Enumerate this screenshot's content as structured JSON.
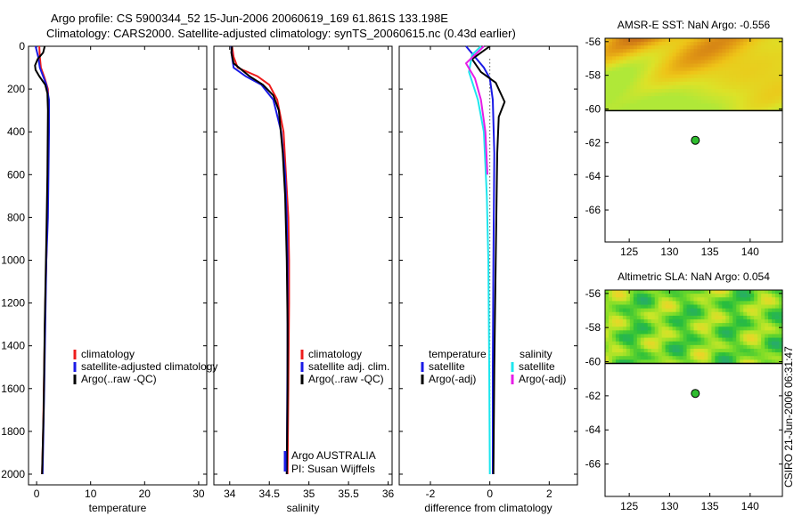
{
  "header": {
    "line1": "Argo profile: CS 5900344_52 15-Jun-2006 20060619_169 61.861S 133.198E",
    "line2": "Climatology: CARS2000. Satellite-adjusted climatology: synTS_20060615.nc (0.43d earlier)"
  },
  "side_label": "CSIRO 21-Jun-2006 06:31:47",
  "colors": {
    "climatology": "#ee1c1c",
    "satellite": "#1a1ae6",
    "argo": "#000000",
    "sal_satellite": "#1ee6ee",
    "sal_argo": "#e61ee6",
    "dot": "#2fbd2f"
  },
  "chart_data": [
    {
      "type": "line",
      "name": "temperature-profile",
      "xlabel": "temperature",
      "ylabel": "",
      "xlim": [
        -1.5,
        31.5
      ],
      "ylim": [
        2050,
        0
      ],
      "xticks": [
        0,
        10,
        20,
        30
      ],
      "yticks": [
        0,
        200,
        400,
        600,
        800,
        1000,
        1200,
        1400,
        1600,
        1800,
        2000
      ],
      "legend": [
        "climatology",
        "satellite-adjusted climatology",
        "Argo(..raw -QC)"
      ],
      "series": [
        {
          "name": "climatology",
          "color": "climatology",
          "x": [
            0.5,
            0.6,
            0.8,
            1.5,
            2.1,
            2.2,
            2.1,
            2.0,
            1.8,
            1.6,
            1.4,
            1.2,
            1.0
          ],
          "y": [
            0,
            50,
            100,
            150,
            200,
            300,
            500,
            800,
            1000,
            1200,
            1500,
            1800,
            2000
          ]
        },
        {
          "name": "satellite-adjusted climatology",
          "color": "satellite",
          "x": [
            -0.2,
            0.3,
            0.6,
            1.8,
            2.3,
            2.3,
            2.2,
            2.1,
            1.8,
            1.6,
            1.4,
            1.1
          ],
          "y": [
            0,
            50,
            100,
            180,
            250,
            400,
            600,
            800,
            1000,
            1300,
            1600,
            2000
          ]
        },
        {
          "name": "Argo(..raw -QC)",
          "color": "argo",
          "x": [
            1.5,
            1.2,
            0.2,
            -0.3,
            -0.2,
            0.5,
            1.6,
            2.0,
            2.1,
            2.0,
            1.8,
            1.5,
            1.3,
            1.0
          ],
          "y": [
            0,
            30,
            60,
            90,
            110,
            140,
            180,
            220,
            300,
            600,
            900,
            1300,
            1700,
            2000
          ]
        }
      ]
    },
    {
      "type": "line",
      "name": "salinity-profile",
      "xlabel": "salinity",
      "xlim": [
        33.8,
        36.05
      ],
      "ylim": [
        2050,
        0
      ],
      "xticks": [
        34,
        34.5,
        35,
        35.5,
        36
      ],
      "legend": [
        "climatology",
        "satellite adj. clim.",
        "Argo(..raw -QC)"
      ],
      "annotations": [
        "Argo AUSTRALIA",
        "PI: Susan Wijffels"
      ],
      "series": [
        {
          "name": "climatology",
          "color": "climatology",
          "x": [
            34.03,
            34.05,
            34.1,
            34.35,
            34.5,
            34.6,
            34.68,
            34.71,
            34.74,
            34.75,
            34.75,
            34.74,
            34.73
          ],
          "y": [
            0,
            50,
            100,
            140,
            180,
            250,
            400,
            600,
            800,
            1000,
            1200,
            1600,
            2000
          ]
        },
        {
          "name": "satellite adj. clim.",
          "color": "satellite",
          "x": [
            34.02,
            34.03,
            34.05,
            34.2,
            34.4,
            34.55,
            34.65,
            34.7,
            34.72,
            34.73,
            34.73,
            34.72
          ],
          "y": [
            0,
            50,
            100,
            140,
            180,
            250,
            400,
            600,
            800,
            1000,
            1400,
            2000
          ]
        },
        {
          "name": "Argo(..raw -QC)",
          "color": "argo",
          "x": [
            34.03,
            34.02,
            34.05,
            34.25,
            34.42,
            34.55,
            34.62,
            34.67,
            34.7,
            34.72,
            34.73,
            34.73,
            34.72
          ],
          "y": [
            0,
            30,
            80,
            140,
            180,
            230,
            300,
            500,
            700,
            1000,
            1300,
            1600,
            2000
          ]
        }
      ]
    },
    {
      "type": "line",
      "name": "difference-profile",
      "xlabel": "difference from climatology",
      "xlim": [
        -3.05,
        2.95
      ],
      "ylim": [
        2050,
        0
      ],
      "xticks": [
        -2,
        0,
        2
      ],
      "legend_groups": [
        {
          "title": "temperature",
          "items": [
            "satellite",
            "Argo(-adj)"
          ]
        },
        {
          "title": "salinity",
          "items": [
            "satellite",
            "Argo(-adj)"
          ]
        }
      ],
      "series": [
        {
          "name": "temperature satellite",
          "color": "satellite",
          "x": [
            -0.8,
            -0.5,
            -0.2,
            0.0,
            0.1,
            0.15,
            0.12,
            0.1,
            0.1
          ],
          "y": [
            0,
            50,
            100,
            150,
            250,
            500,
            1000,
            1500,
            2000
          ]
        },
        {
          "name": "temperature Argo(-adj)",
          "color": "argo",
          "x": [
            0.0,
            -0.6,
            -0.3,
            0.2,
            0.5,
            0.3,
            0.25,
            0.2,
            0.15,
            0.12
          ],
          "y": [
            0,
            60,
            120,
            170,
            260,
            330,
            500,
            1000,
            1500,
            2000
          ]
        },
        {
          "name": "salinity satellite",
          "color": "sal_satellite",
          "x": [
            -0.3,
            -0.6,
            -0.7,
            -0.4,
            -0.2,
            -0.1,
            -0.05,
            -0.02,
            0.0
          ],
          "y": [
            0,
            40,
            120,
            250,
            400,
            700,
            1000,
            1500,
            2000
          ]
        },
        {
          "name": "salinity Argo(-adj)",
          "color": "sal_argo",
          "x": [
            -0.2,
            -0.8,
            -0.5,
            -0.3,
            -0.15,
            -0.08
          ],
          "y": [
            0,
            80,
            150,
            250,
            400,
            600
          ]
        }
      ]
    },
    {
      "type": "heatmap",
      "name": "amsr-e-sst-map",
      "title": "AMSR-E SST: NaN Argo: -0.556",
      "xlim": [
        122,
        144
      ],
      "ylim": [
        -67.9,
        -55.8
      ],
      "xticks": [
        125,
        130,
        135,
        140
      ],
      "yticks": [
        -56,
        -58,
        -60,
        -62,
        -64,
        -66
      ],
      "data_lat_range": [
        -60.1,
        -55.8
      ],
      "argo_position": {
        "lon": 133.198,
        "lat": -61.861
      }
    },
    {
      "type": "heatmap",
      "name": "altimetric-sla-map",
      "title": "Altimetric SLA: NaN Argo: 0.054",
      "xlim": [
        122,
        144
      ],
      "ylim": [
        -67.9,
        -55.8
      ],
      "xticks": [
        125,
        130,
        135,
        140
      ],
      "yticks": [
        -56,
        -58,
        -60,
        -62,
        -64,
        -66
      ],
      "data_lat_range": [
        -60.1,
        -55.8
      ],
      "argo_position": {
        "lon": 133.198,
        "lat": -61.861
      }
    }
  ]
}
